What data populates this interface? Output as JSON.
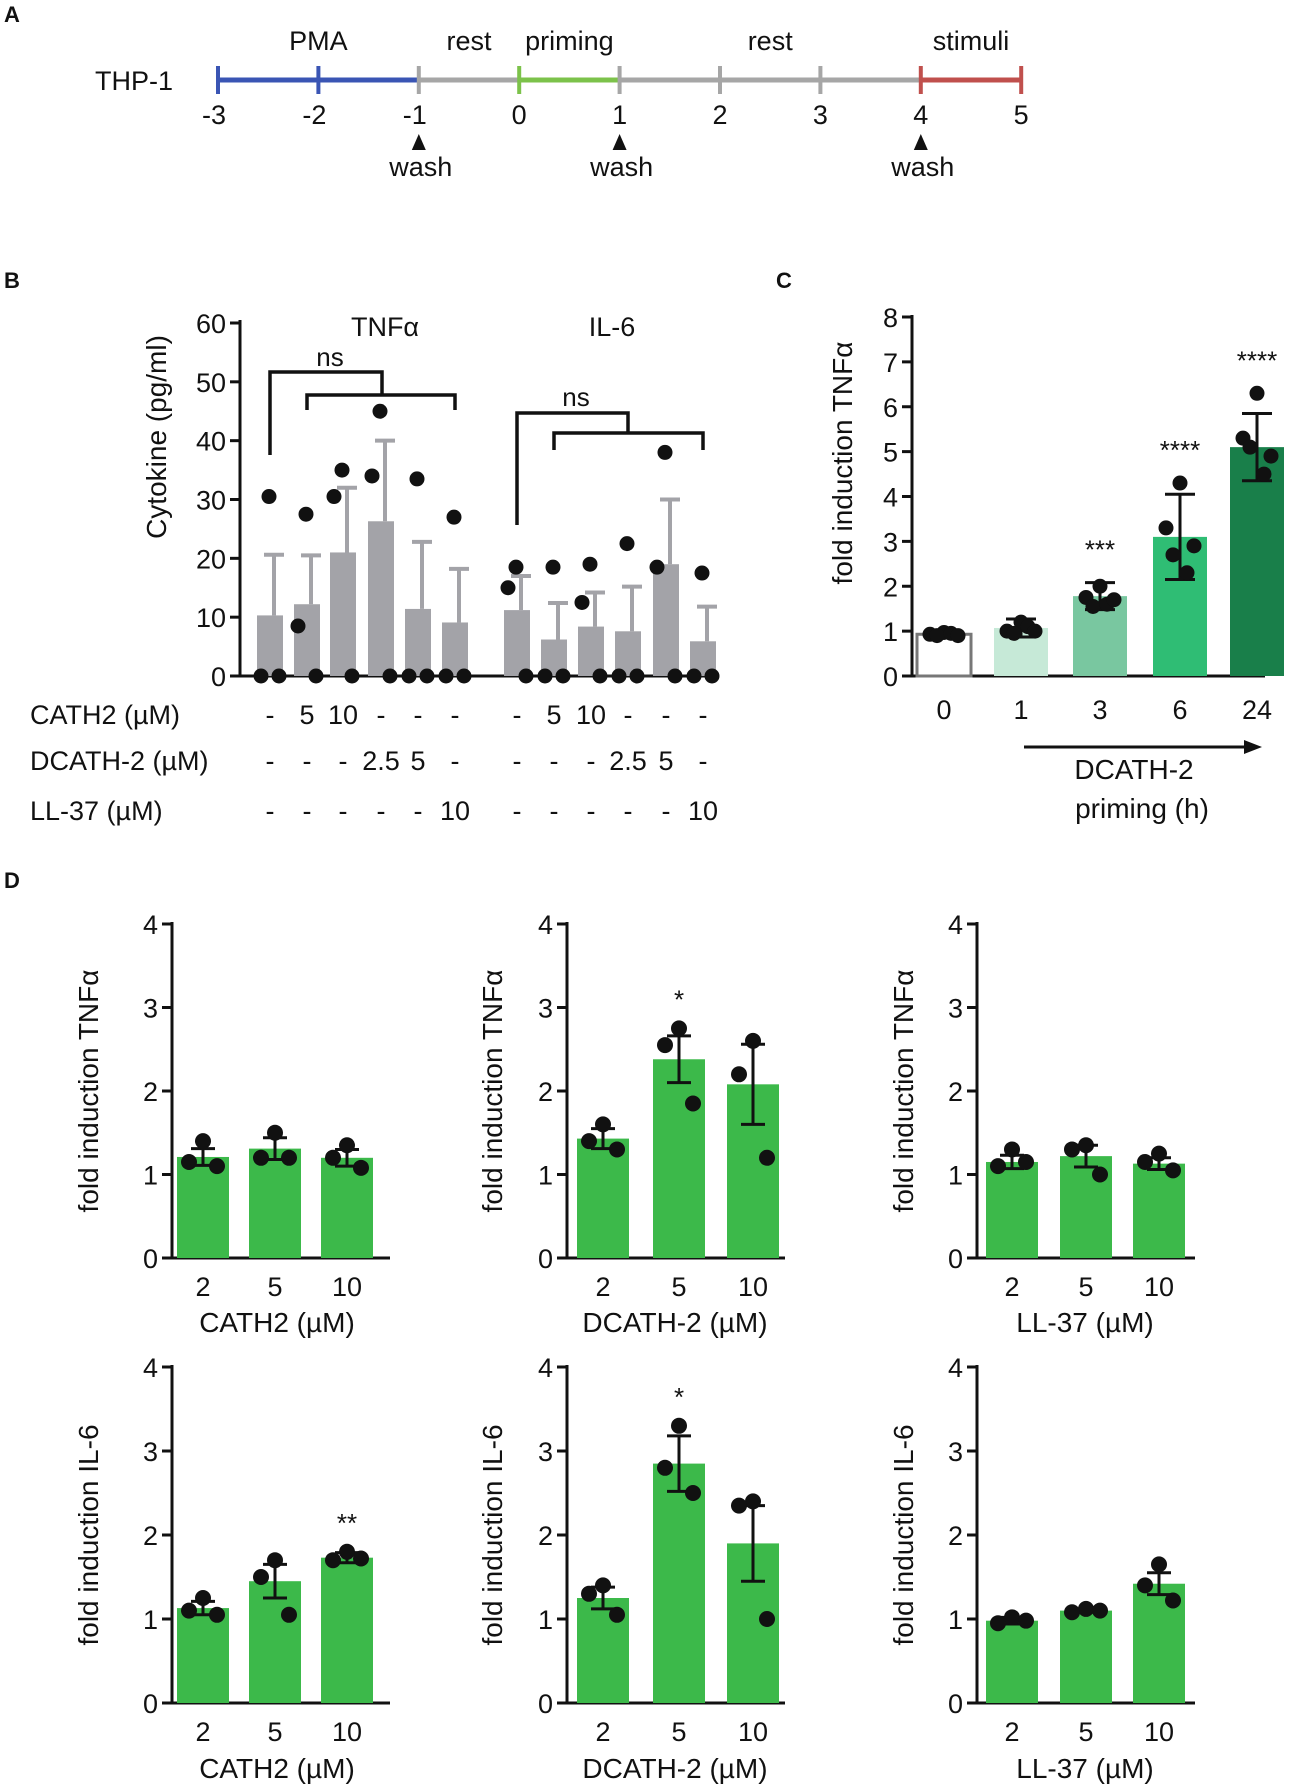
{
  "colors": {
    "blue": "#3a55b4",
    "gray": "#a6a6a6",
    "green_light": "#7cc24a",
    "red": "#c0504d",
    "bar_gray": "#a3a3a8",
    "bar_green": "#3cb94a",
    "c_0h": "#ffffff",
    "c_1h": "#c6e9d7",
    "c_3h": "#79c7a0",
    "c_6h": "#2fbd74",
    "c_24h": "#197f4a"
  },
  "panelA": {
    "letter": "A",
    "cell_line": "THP-1",
    "ticks": [
      "-3",
      "-2",
      "-1",
      "0",
      "1",
      "2",
      "3",
      "4",
      "5"
    ],
    "phases": [
      {
        "label": "PMA",
        "from": -3,
        "to": -1,
        "color": "blue"
      },
      {
        "label": "rest",
        "from": -1,
        "to": 0,
        "color": "gray"
      },
      {
        "label": "priming",
        "from": 0,
        "to": 1,
        "color": "green_light"
      },
      {
        "label": "rest",
        "from": 1,
        "to": 4,
        "color": "gray"
      },
      {
        "label": "stimuli",
        "from": 4,
        "to": 5,
        "color": "red"
      }
    ],
    "wash_label": "wash",
    "wash_times": [
      -1,
      1,
      4
    ]
  },
  "chart_data": [
    {
      "id": "B",
      "panel": "B",
      "type": "bar",
      "ylabel": "Cytokine (pg/ml)",
      "ylim": [
        0,
        60
      ],
      "yticks": [
        "0",
        "10",
        "20",
        "30",
        "40",
        "50",
        "60"
      ],
      "groups": [
        {
          "name": "TNFα",
          "values": [
            10.3,
            12.2,
            21.0,
            26.3,
            11.4,
            9.1
          ],
          "errors": [
            10.3,
            8.3,
            11.0,
            13.7,
            11.4,
            9.1
          ],
          "points": [
            [
              30.5,
              0,
              0
            ],
            [
              27.5,
              8.5,
              0
            ],
            [
              35,
              30.5,
              0
            ],
            [
              45,
              34,
              0
            ],
            [
              33.5,
              0,
              0
            ],
            [
              27,
              0,
              0
            ]
          ],
          "sig": "ns"
        },
        {
          "name": "IL-6",
          "values": [
            11.2,
            6.2,
            8.4,
            7.6,
            19.0,
            5.9
          ],
          "errors": [
            5.8,
            6.2,
            5.8,
            7.6,
            11.0,
            5.9
          ],
          "points": [
            [
              18.5,
              15,
              0
            ],
            [
              18.5,
              0,
              0
            ],
            [
              19,
              12.5,
              0
            ],
            [
              22.5,
              0,
              0
            ],
            [
              38,
              18.5,
              0
            ],
            [
              17.5,
              0,
              0
            ]
          ],
          "sig": "ns"
        }
      ],
      "treatments": [
        {
          "name": "CATH2 (µM)",
          "values": [
            "-",
            "5",
            "10",
            "-",
            "-",
            "-",
            "-",
            "5",
            "10",
            "-",
            "-",
            "-"
          ]
        },
        {
          "name": "DCATH-2 (µM)",
          "values": [
            "-",
            "-",
            "-",
            "2.5",
            "5",
            "-",
            "-",
            "-",
            "-",
            "2.5",
            "5",
            "-"
          ]
        },
        {
          "name": "LL-37 (µM)",
          "values": [
            "-",
            "-",
            "-",
            "-",
            "-",
            "10",
            "-",
            "-",
            "-",
            "-",
            "-",
            "10"
          ]
        }
      ]
    },
    {
      "id": "C",
      "panel": "C",
      "type": "bar",
      "ylabel": "fold induction TNFα",
      "ylim": [
        0,
        8
      ],
      "yticks": [
        "0",
        "1",
        "2",
        "3",
        "4",
        "5",
        "6",
        "7",
        "8"
      ],
      "categories": [
        "0",
        "1",
        "3",
        "6",
        "24"
      ],
      "values": [
        0.93,
        1.07,
        1.78,
        3.1,
        5.1
      ],
      "errors": [
        0.05,
        0.2,
        0.3,
        0.95,
        0.75
      ],
      "points": [
        [
          0.97,
          0.93,
          0.9,
          0.95,
          0.9
        ],
        [
          1.2,
          1.0,
          0.95,
          1.1,
          1.0
        ],
        [
          2.0,
          1.75,
          1.55,
          1.6,
          1.7
        ],
        [
          4.3,
          3.3,
          2.7,
          2.3,
          2.9
        ],
        [
          6.3,
          5.3,
          5.1,
          4.5,
          4.9
        ]
      ],
      "colors": [
        "c_0h",
        "c_1h",
        "c_3h",
        "c_6h",
        "c_24h"
      ],
      "sig": [
        "",
        "",
        "***",
        "****",
        "****"
      ],
      "xlabel_line1": "DCATH-2",
      "xlabel_line2": "priming (h)"
    },
    {
      "id": "D1",
      "panel": "D",
      "type": "bar",
      "ylabel": "fold induction TNFα",
      "ylim": [
        0,
        4
      ],
      "yticks": [
        "0",
        "1",
        "2",
        "3",
        "4"
      ],
      "categories": [
        "2",
        "5",
        "10"
      ],
      "values": [
        1.21,
        1.31,
        1.2
      ],
      "errors": [
        0.1,
        0.13,
        0.1
      ],
      "points": [
        [
          1.4,
          1.15,
          1.1
        ],
        [
          1.5,
          1.2,
          1.2
        ],
        [
          1.35,
          1.2,
          1.08
        ]
      ],
      "sig": [
        "",
        "",
        ""
      ],
      "xlabel": "CATH2 (µM)"
    },
    {
      "id": "D2",
      "panel": "D",
      "type": "bar",
      "ylabel": "fold induction TNFα",
      "ylim": [
        0,
        4
      ],
      "yticks": [
        "0",
        "1",
        "2",
        "3",
        "4"
      ],
      "categories": [
        "2",
        "5",
        "10"
      ],
      "values": [
        1.43,
        2.38,
        2.08
      ],
      "errors": [
        0.12,
        0.28,
        0.48
      ],
      "points": [
        [
          1.6,
          1.4,
          1.3
        ],
        [
          2.75,
          2.55,
          1.85
        ],
        [
          2.6,
          2.2,
          1.2
        ]
      ],
      "sig": [
        "",
        "*",
        ""
      ],
      "xlabel": "DCATH-2 (µM)"
    },
    {
      "id": "D3",
      "panel": "D",
      "type": "bar",
      "ylabel": "fold induction TNFα",
      "ylim": [
        0,
        4
      ],
      "yticks": [
        "0",
        "1",
        "2",
        "3",
        "4"
      ],
      "categories": [
        "2",
        "5",
        "10"
      ],
      "values": [
        1.15,
        1.22,
        1.13
      ],
      "errors": [
        0.08,
        0.13,
        0.07
      ],
      "points": [
        [
          1.3,
          1.1,
          1.15
        ],
        [
          1.35,
          1.3,
          1.0
        ],
        [
          1.25,
          1.15,
          1.05
        ]
      ],
      "sig": [
        "",
        "",
        ""
      ],
      "xlabel": "LL-37 (µM)"
    },
    {
      "id": "D4",
      "panel": "D",
      "type": "bar",
      "ylabel": "fold induction IL-6",
      "ylim": [
        0,
        4
      ],
      "yticks": [
        "0",
        "1",
        "2",
        "3",
        "4"
      ],
      "categories": [
        "2",
        "5",
        "10"
      ],
      "values": [
        1.13,
        1.45,
        1.73
      ],
      "errors": [
        0.08,
        0.2,
        0.06
      ],
      "points": [
        [
          1.25,
          1.1,
          1.05
        ],
        [
          1.7,
          1.5,
          1.05
        ],
        [
          1.8,
          1.7,
          1.72
        ]
      ],
      "sig": [
        "",
        "",
        "**"
      ],
      "xlabel": "CATH2 (µM)"
    },
    {
      "id": "D5",
      "panel": "D",
      "type": "bar",
      "ylabel": "fold induction IL-6",
      "ylim": [
        0,
        4
      ],
      "yticks": [
        "0",
        "1",
        "2",
        "3",
        "4"
      ],
      "categories": [
        "2",
        "5",
        "10"
      ],
      "values": [
        1.25,
        2.85,
        1.9
      ],
      "errors": [
        0.13,
        0.33,
        0.45
      ],
      "points": [
        [
          1.4,
          1.3,
          1.05
        ],
        [
          3.3,
          2.8,
          2.5
        ],
        [
          2.4,
          2.35,
          1.0
        ]
      ],
      "sig": [
        "",
        "*",
        ""
      ],
      "xlabel": "DCATH-2 (µM)"
    },
    {
      "id": "D6",
      "panel": "D",
      "type": "bar",
      "ylabel": "fold induction IL-6",
      "ylim": [
        0,
        4
      ],
      "yticks": [
        "0",
        "1",
        "2",
        "3",
        "4"
      ],
      "categories": [
        "2",
        "5",
        "10"
      ],
      "values": [
        0.98,
        1.1,
        1.42
      ],
      "errors": [
        0.04,
        0.02,
        0.13
      ],
      "points": [
        [
          1.02,
          0.95,
          0.98
        ],
        [
          1.12,
          1.08,
          1.1
        ],
        [
          1.65,
          1.4,
          1.22
        ]
      ],
      "sig": [
        "",
        "",
        ""
      ],
      "xlabel": "LL-37 (µM)"
    }
  ]
}
